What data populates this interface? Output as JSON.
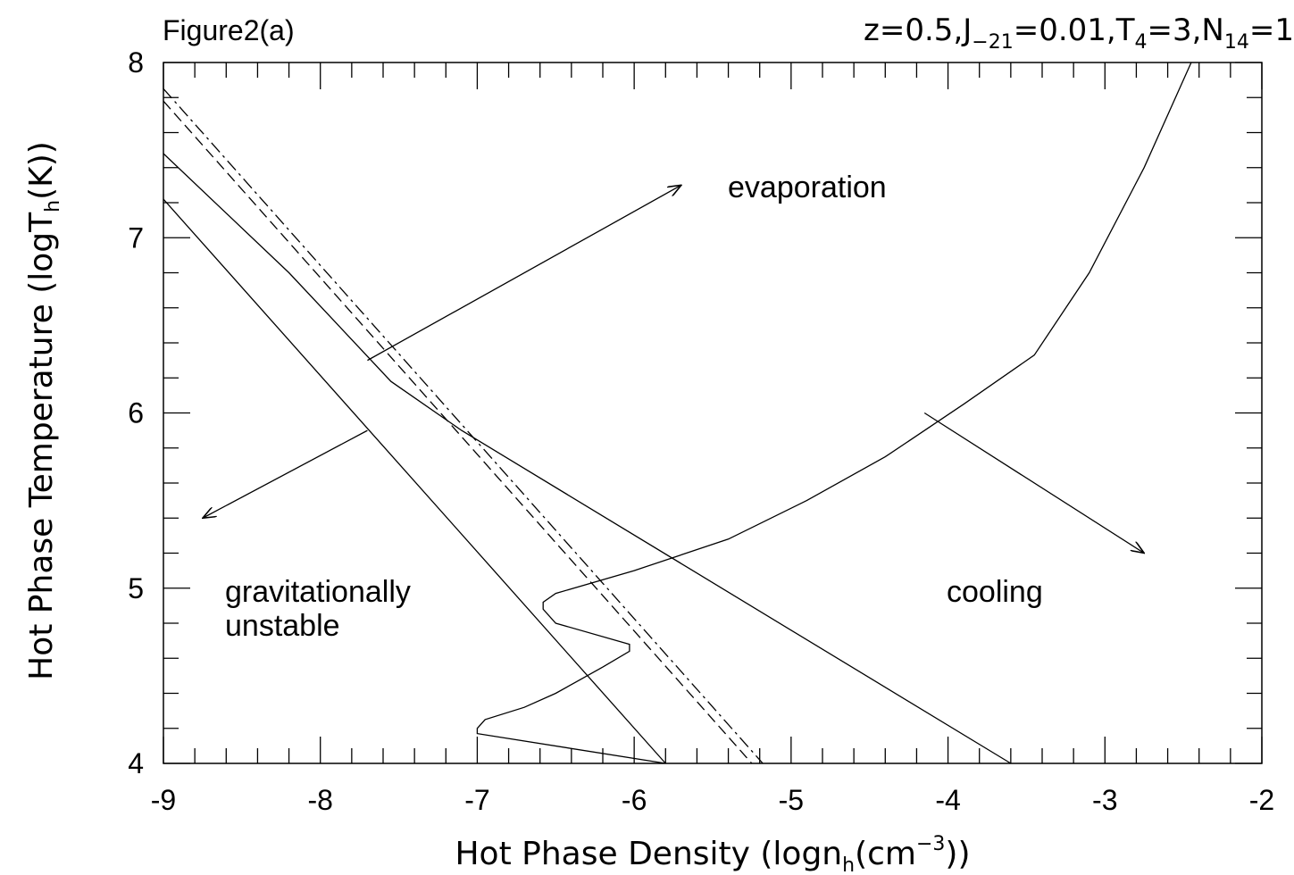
{
  "chart_data": {
    "type": "line",
    "figure_label": "Figure2(a)",
    "title_parts": {
      "t1": "z=0.5,J",
      "s1": "−21",
      "t2": "=0.01,T",
      "s2": "4",
      "t3": "=3,N",
      "s3": "14",
      "t4": "=1"
    },
    "xlabel_parts": {
      "pre": "Hot Phase Density (logn",
      "sub": "h",
      "mid": "(cm",
      "sup": "−3",
      "post": "))"
    },
    "ylabel_parts": {
      "pre": "Hot Phase Temperature (logT",
      "sub": "h",
      "post": "(K))"
    },
    "xlim": [
      -9,
      -2
    ],
    "ylim": [
      4,
      8
    ],
    "xticks": [
      -9,
      -8,
      -7,
      -6,
      -5,
      -4,
      -3,
      -2
    ],
    "xtick_labels": [
      "-9",
      "-8",
      "-7",
      "-6",
      "-5",
      "-4",
      "-3",
      "-2"
    ],
    "yticks": [
      4,
      5,
      6,
      7,
      8
    ],
    "ytick_labels": [
      "4",
      "5",
      "6",
      "7",
      "8"
    ],
    "grid": false,
    "legend": "none",
    "series": [
      {
        "style": "solid",
        "x": [
          -9.0,
          -5.8
        ],
        "y": [
          7.22,
          4.0
        ]
      },
      {
        "style": "solid",
        "x": [
          -9.0,
          -8.2,
          -7.55,
          -7.1,
          -3.6
        ],
        "y": [
          7.48,
          6.8,
          6.18,
          5.9,
          4.0
        ]
      },
      {
        "style": "dashed",
        "x": [
          -9.0,
          -5.25
        ],
        "y": [
          7.78,
          4.0
        ]
      },
      {
        "style": "dashdot",
        "x": [
          -9.0,
          -5.18
        ],
        "y": [
          7.85,
          4.0
        ]
      },
      {
        "style": "solid",
        "x": [
          -5.8,
          -7.0,
          -7.0,
          -6.95,
          -6.7,
          -6.5,
          -6.2,
          -6.03,
          -6.03,
          -6.5,
          -6.58,
          -6.58,
          -6.5,
          -6.0,
          -5.4,
          -4.9,
          -4.4,
          -3.9,
          -3.45,
          -3.1,
          -2.75,
          -2.45
        ],
        "y": [
          4.0,
          4.17,
          4.2,
          4.25,
          4.32,
          4.4,
          4.55,
          4.64,
          4.68,
          4.8,
          4.88,
          4.92,
          4.97,
          5.1,
          5.28,
          5.5,
          5.75,
          6.05,
          6.33,
          6.8,
          7.4,
          8.0
        ]
      }
    ],
    "annotations": {
      "evaporation": "evaporation",
      "gravitationally": "gravitationally",
      "unstable": "unstable",
      "cooling": "cooling"
    },
    "arrows": [
      {
        "from": [
          -7.7,
          6.3
        ],
        "to": [
          -5.7,
          7.3
        ]
      },
      {
        "from": [
          -7.7,
          5.9
        ],
        "to": [
          -8.75,
          5.4
        ]
      },
      {
        "from": [
          -4.15,
          6.0
        ],
        "to": [
          -2.75,
          5.2
        ]
      }
    ]
  }
}
